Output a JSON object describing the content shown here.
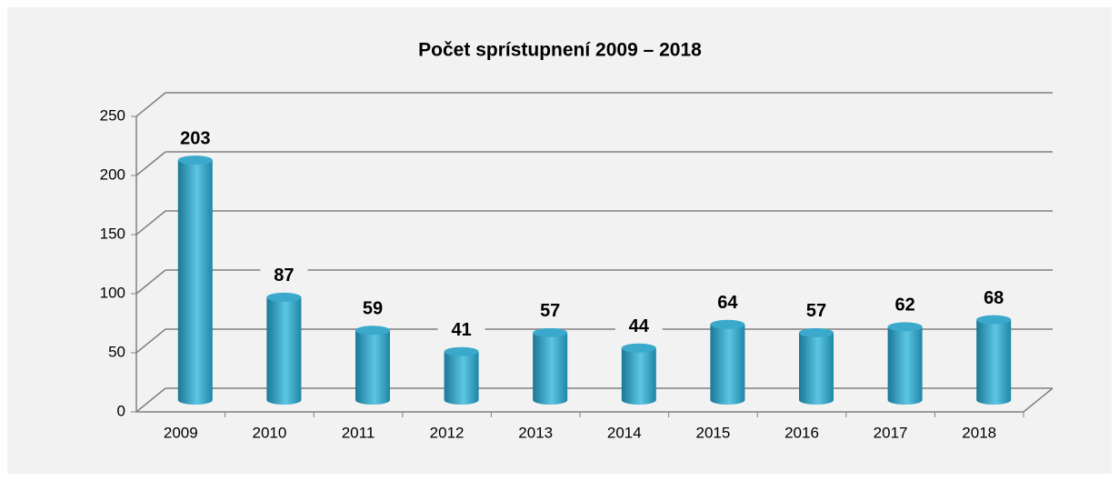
{
  "chart_data": {
    "type": "bar3d",
    "title": "Počet sprístupnení 2009 – 2018",
    "categories": [
      "2009",
      "2010",
      "2011",
      "2012",
      "2013",
      "2014",
      "2015",
      "2016",
      "2017",
      "2018"
    ],
    "values": [
      203,
      87,
      59,
      41,
      57,
      44,
      64,
      57,
      62,
      68
    ],
    "color": "#2a9cc0",
    "ylim": [
      0,
      250
    ],
    "yticks": [
      0,
      50,
      100,
      150,
      200,
      250
    ],
    "grid": true
  }
}
